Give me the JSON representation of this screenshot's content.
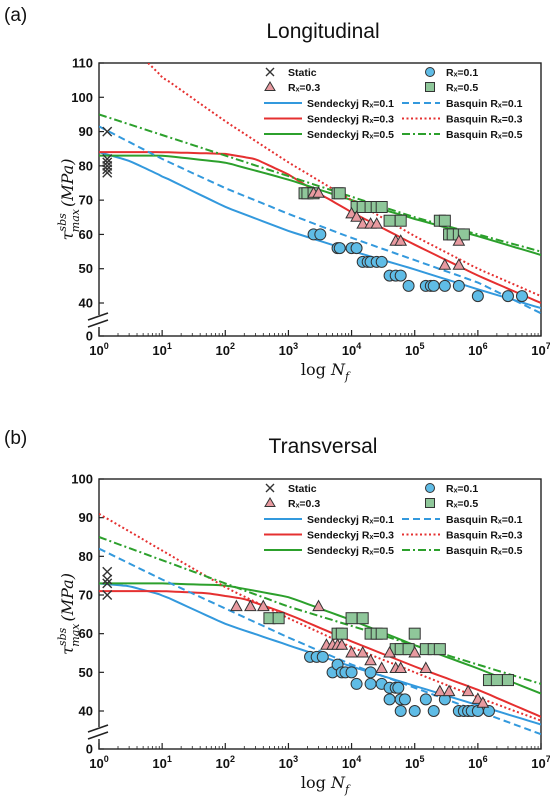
{
  "colors": {
    "r01": "#3399dd",
    "r03": "#e53030",
    "r05": "#2ca02c",
    "r01_fill": "#5fbce6",
    "r03_fill": "#e89aa0",
    "r05_fill": "#8fc79a"
  },
  "legend": {
    "static": "Static",
    "r01": "Rₓ=0.1",
    "r03": "Rₓ=0.3",
    "r05": "Rₓ=0.5",
    "sendeckyj01": "Sendeckyj Rₓ=0.1",
    "sendeckyj03": "Sendeckyj Rₓ=0.3",
    "sendeckyj05": "Sendeckyj Rₓ=0.5",
    "basquin01": "Basquin Rₓ=0.1",
    "basquin03": "Basquin Rₓ=0.3",
    "basquin05": "Basquin Rₓ=0.5"
  },
  "axes": {
    "y_label_main": "τ",
    "y_label_sup": "sbs",
    "y_label_sub": "max",
    "y_label_unit": "(MPa)",
    "x_label_log": "log",
    "x_label_var": "N",
    "x_label_sub": "f",
    "x_ticks": [
      "10⁰",
      "10¹",
      "10²",
      "10³",
      "10⁴",
      "10⁵",
      "10⁶",
      "10⁷"
    ]
  },
  "chart_data": [
    {
      "panel_label": "(a)",
      "title": "Longitudinal",
      "type": "scatter",
      "xscale": "log",
      "xlim": [
        1,
        10000000
      ],
      "ylim": [
        40,
        110
      ],
      "yticks": [
        0,
        40,
        50,
        60,
        70,
        80,
        90,
        100,
        110
      ],
      "axis_break": true,
      "static": [
        90,
        82,
        81,
        80,
        79,
        78
      ],
      "points": {
        "r01": [
          [
            2500,
            60
          ],
          [
            3200,
            60
          ],
          [
            6000,
            56
          ],
          [
            6500,
            56
          ],
          [
            10000,
            56
          ],
          [
            12000,
            56
          ],
          [
            15000,
            52
          ],
          [
            18000,
            52
          ],
          [
            20000,
            52
          ],
          [
            25000,
            52
          ],
          [
            30000,
            52
          ],
          [
            40000,
            48
          ],
          [
            50000,
            48
          ],
          [
            60000,
            48
          ],
          [
            80000,
            45
          ],
          [
            150000,
            45
          ],
          [
            180000,
            45
          ],
          [
            200000,
            45
          ],
          [
            300000,
            45
          ],
          [
            500000,
            45
          ],
          [
            1000000,
            42
          ],
          [
            3000000,
            42
          ],
          [
            5000000,
            42
          ]
        ],
        "r03": [
          [
            2500,
            72
          ],
          [
            3000,
            72
          ],
          [
            10000,
            66
          ],
          [
            12000,
            65
          ],
          [
            15000,
            63
          ],
          [
            20000,
            63
          ],
          [
            25000,
            63
          ],
          [
            50000,
            58
          ],
          [
            60000,
            58
          ],
          [
            300000,
            51
          ],
          [
            500000,
            51
          ],
          [
            500000,
            58
          ]
        ],
        "r05": [
          [
            1800,
            72
          ],
          [
            2000,
            72
          ],
          [
            2500,
            72
          ],
          [
            6000,
            72
          ],
          [
            6500,
            72
          ],
          [
            12000,
            68
          ],
          [
            15000,
            68
          ],
          [
            20000,
            68
          ],
          [
            25000,
            68
          ],
          [
            30000,
            68
          ],
          [
            40000,
            64
          ],
          [
            60000,
            64
          ],
          [
            250000,
            64
          ],
          [
            300000,
            64
          ],
          [
            350000,
            60
          ],
          [
            400000,
            60
          ],
          [
            500000,
            60
          ],
          [
            600000,
            60
          ]
        ]
      },
      "curves": {
        "sendeckyj01": [
          [
            1,
            84
          ],
          [
            3,
            81.5
          ],
          [
            10,
            77
          ],
          [
            100,
            68
          ],
          [
            1000,
            61
          ],
          [
            10000,
            55.2
          ],
          [
            100000,
            49.8
          ],
          [
            1000000,
            44
          ],
          [
            10000000,
            38.5
          ]
        ],
        "sendeckyj03": [
          [
            1,
            84
          ],
          [
            10,
            84
          ],
          [
            100,
            83.5
          ],
          [
            300,
            82
          ],
          [
            1000,
            77.5
          ],
          [
            3000,
            72
          ],
          [
            10000,
            66.5
          ],
          [
            100000,
            57
          ],
          [
            1000000,
            48
          ],
          [
            10000000,
            40
          ]
        ],
        "sendeckyj05": [
          [
            1,
            83
          ],
          [
            10,
            83
          ],
          [
            100,
            81
          ],
          [
            1000,
            76
          ],
          [
            10000,
            70
          ],
          [
            100000,
            64.5
          ],
          [
            1000000,
            59.5
          ],
          [
            10000000,
            54
          ]
        ],
        "basquin01": [
          [
            1,
            91.5
          ],
          [
            10,
            82
          ],
          [
            100,
            73.5
          ],
          [
            1000,
            66
          ],
          [
            10000,
            59
          ],
          [
            100000,
            52.5
          ],
          [
            1000000,
            46
          ],
          [
            10000000,
            37
          ]
        ],
        "basquin03": [
          [
            6,
            110
          ],
          [
            10,
            106
          ],
          [
            100,
            93
          ],
          [
            1000,
            81
          ],
          [
            10000,
            70
          ],
          [
            100000,
            59.5
          ],
          [
            1000000,
            50
          ],
          [
            10000000,
            42
          ]
        ],
        "basquin05": [
          [
            1,
            95
          ],
          [
            10,
            89
          ],
          [
            100,
            83
          ],
          [
            1000,
            77
          ],
          [
            10000,
            71
          ],
          [
            100000,
            65
          ],
          [
            1000000,
            60
          ],
          [
            10000000,
            55
          ]
        ]
      }
    },
    {
      "panel_label": "(b)",
      "title": "Transversal",
      "type": "scatter",
      "xscale": "log",
      "xlim": [
        1,
        10000000
      ],
      "ylim": [
        40,
        100
      ],
      "yticks": [
        0,
        40,
        50,
        60,
        70,
        80,
        90,
        100
      ],
      "axis_break": true,
      "static": [
        76,
        74,
        73,
        70
      ],
      "points": {
        "r01": [
          [
            2200,
            54
          ],
          [
            2800,
            54
          ],
          [
            3500,
            54
          ],
          [
            5000,
            50
          ],
          [
            6000,
            52
          ],
          [
            7000,
            50
          ],
          [
            8000,
            50
          ],
          [
            10000,
            50
          ],
          [
            12000,
            47
          ],
          [
            20000,
            50
          ],
          [
            20000,
            47
          ],
          [
            30000,
            47
          ],
          [
            40000,
            43
          ],
          [
            40000,
            46
          ],
          [
            50000,
            46
          ],
          [
            55000,
            46
          ],
          [
            60000,
            40
          ],
          [
            60000,
            43
          ],
          [
            70000,
            43
          ],
          [
            100000,
            40
          ],
          [
            150000,
            43
          ],
          [
            200000,
            40
          ],
          [
            300000,
            43
          ],
          [
            500000,
            40
          ],
          [
            600000,
            40
          ],
          [
            700000,
            40
          ],
          [
            800000,
            40
          ],
          [
            1000000,
            40
          ],
          [
            1500000,
            40
          ]
        ],
        "r03": [
          [
            150,
            67
          ],
          [
            250,
            67
          ],
          [
            400,
            67
          ],
          [
            3000,
            67
          ],
          [
            4000,
            57
          ],
          [
            5000,
            57
          ],
          [
            6000,
            57
          ],
          [
            7000,
            57
          ],
          [
            10000,
            55
          ],
          [
            15000,
            55
          ],
          [
            20000,
            53
          ],
          [
            30000,
            51
          ],
          [
            40000,
            55
          ],
          [
            50000,
            51
          ],
          [
            60000,
            51
          ],
          [
            100000,
            55
          ],
          [
            150000,
            51
          ],
          [
            250000,
            45
          ],
          [
            350000,
            45
          ],
          [
            700000,
            45
          ],
          [
            1000000,
            43
          ],
          [
            1200000,
            42
          ]
        ],
        "r05": [
          [
            500,
            64
          ],
          [
            700,
            64
          ],
          [
            6000,
            60
          ],
          [
            7000,
            60
          ],
          [
            10000,
            64
          ],
          [
            15000,
            64
          ],
          [
            20000,
            60
          ],
          [
            25000,
            60
          ],
          [
            30000,
            60
          ],
          [
            50000,
            56
          ],
          [
            60000,
            56
          ],
          [
            80000,
            56
          ],
          [
            100000,
            60
          ],
          [
            150000,
            56
          ],
          [
            200000,
            56
          ],
          [
            250000,
            56
          ],
          [
            1500000,
            48
          ],
          [
            2000000,
            48
          ],
          [
            3000000,
            48
          ]
        ]
      },
      "curves": {
        "sendeckyj01": [
          [
            1,
            73
          ],
          [
            3,
            72.3
          ],
          [
            10,
            70
          ],
          [
            100,
            62.5
          ],
          [
            1000,
            57
          ],
          [
            10000,
            51.5
          ],
          [
            100000,
            46.5
          ],
          [
            1000000,
            41.5
          ],
          [
            10000000,
            36.5
          ]
        ],
        "sendeckyj03": [
          [
            1,
            71
          ],
          [
            10,
            71
          ],
          [
            50,
            70.5
          ],
          [
            200,
            69
          ],
          [
            1000,
            65
          ],
          [
            10000,
            58
          ],
          [
            100000,
            51.5
          ],
          [
            1000000,
            45.5
          ],
          [
            10000000,
            38.5
          ]
        ],
        "sendeckyj05": [
          [
            1,
            73
          ],
          [
            10,
            73
          ],
          [
            100,
            72.5
          ],
          [
            1000,
            69.5
          ],
          [
            10000,
            63.5
          ],
          [
            100000,
            57
          ],
          [
            1000000,
            51
          ],
          [
            10000000,
            44.5
          ]
        ],
        "basquin01": [
          [
            1,
            82
          ],
          [
            10,
            74
          ],
          [
            100,
            66.5
          ],
          [
            1000,
            59
          ],
          [
            10000,
            52
          ],
          [
            100000,
            46
          ],
          [
            1000000,
            40
          ],
          [
            10000000,
            34
          ]
        ],
        "basquin03": [
          [
            1,
            91
          ],
          [
            10,
            81.5
          ],
          [
            100,
            72
          ],
          [
            1000,
            64
          ],
          [
            10000,
            56.5
          ],
          [
            100000,
            50
          ],
          [
            1000000,
            43.5
          ],
          [
            10000000,
            37.5
          ]
        ],
        "basquin05": [
          [
            1,
            85
          ],
          [
            10,
            79
          ],
          [
            100,
            73
          ],
          [
            1000,
            67
          ],
          [
            10000,
            62
          ],
          [
            100000,
            57
          ],
          [
            1000000,
            52
          ],
          [
            10000000,
            47
          ]
        ]
      }
    }
  ]
}
